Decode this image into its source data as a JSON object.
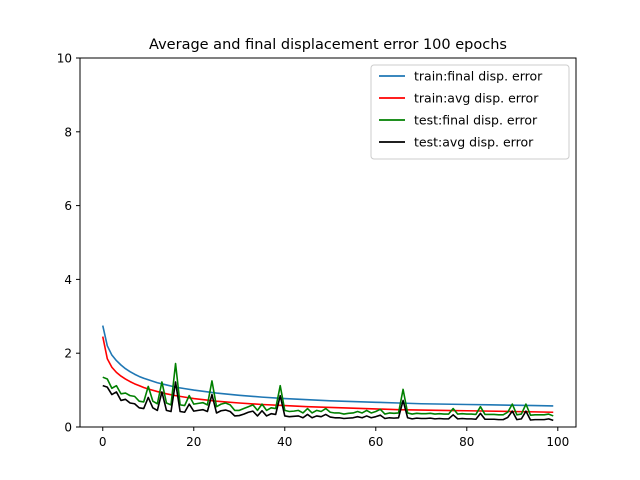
{
  "chart_data": {
    "type": "line",
    "title": "Average and final displacement error 100 epochs",
    "xlabel": "",
    "ylabel": "",
    "xlim": [
      -5,
      104
    ],
    "ylim": [
      0,
      10
    ],
    "xticks": [
      0,
      20,
      40,
      60,
      80,
      100
    ],
    "yticks": [
      0,
      2,
      4,
      6,
      8,
      10
    ],
    "grid": false,
    "legend_position": "top-right",
    "series": [
      {
        "name": "train:final disp. error",
        "color": "#1f77b4",
        "x": [
          0,
          1,
          2,
          3,
          4,
          5,
          6,
          7,
          8,
          9,
          10,
          12,
          14,
          16,
          18,
          20,
          25,
          30,
          35,
          40,
          45,
          50,
          55,
          60,
          65,
          70,
          75,
          80,
          85,
          90,
          95,
          99
        ],
        "values": [
          2.75,
          2.2,
          1.95,
          1.8,
          1.68,
          1.58,
          1.5,
          1.43,
          1.37,
          1.32,
          1.28,
          1.2,
          1.14,
          1.08,
          1.04,
          1.0,
          0.92,
          0.86,
          0.81,
          0.77,
          0.74,
          0.71,
          0.69,
          0.67,
          0.65,
          0.63,
          0.62,
          0.61,
          0.6,
          0.59,
          0.58,
          0.57
        ]
      },
      {
        "name": "train:avg disp. error",
        "color": "#ff0000",
        "x": [
          0,
          1,
          2,
          3,
          4,
          5,
          6,
          7,
          8,
          9,
          10,
          12,
          14,
          16,
          18,
          20,
          25,
          30,
          35,
          40,
          45,
          50,
          55,
          60,
          65,
          70,
          75,
          80,
          85,
          90,
          95,
          99
        ],
        "values": [
          2.45,
          1.85,
          1.62,
          1.48,
          1.38,
          1.3,
          1.23,
          1.17,
          1.12,
          1.07,
          1.03,
          0.96,
          0.9,
          0.85,
          0.81,
          0.77,
          0.7,
          0.65,
          0.61,
          0.58,
          0.55,
          0.53,
          0.51,
          0.49,
          0.47,
          0.46,
          0.45,
          0.44,
          0.43,
          0.42,
          0.41,
          0.4
        ]
      },
      {
        "name": "test:final disp. error",
        "color": "#008000",
        "x": [
          0,
          1,
          2,
          3,
          4,
          5,
          6,
          7,
          8,
          9,
          10,
          11,
          12,
          13,
          14,
          15,
          16,
          17,
          18,
          19,
          20,
          21,
          22,
          23,
          24,
          25,
          26,
          27,
          28,
          29,
          30,
          31,
          32,
          33,
          34,
          35,
          36,
          37,
          38,
          39,
          40,
          41,
          42,
          43,
          44,
          45,
          46,
          47,
          48,
          49,
          50,
          51,
          52,
          53,
          54,
          55,
          56,
          57,
          58,
          59,
          60,
          61,
          62,
          63,
          64,
          65,
          66,
          67,
          68,
          69,
          70,
          71,
          72,
          73,
          74,
          75,
          76,
          77,
          78,
          79,
          80,
          81,
          82,
          83,
          84,
          85,
          86,
          87,
          88,
          89,
          90,
          91,
          92,
          93,
          94,
          95,
          96,
          97,
          98,
          99
        ],
        "values": [
          1.35,
          1.3,
          1.05,
          1.12,
          0.9,
          0.92,
          0.85,
          0.83,
          0.7,
          0.68,
          1.1,
          0.7,
          0.63,
          1.22,
          0.65,
          0.6,
          1.72,
          0.6,
          0.58,
          0.85,
          0.62,
          0.64,
          0.66,
          0.6,
          1.25,
          0.55,
          0.62,
          0.65,
          0.6,
          0.45,
          0.45,
          0.5,
          0.55,
          0.6,
          0.45,
          0.62,
          0.45,
          0.52,
          0.5,
          1.12,
          0.45,
          0.42,
          0.43,
          0.45,
          0.38,
          0.5,
          0.38,
          0.45,
          0.42,
          0.5,
          0.4,
          0.38,
          0.38,
          0.35,
          0.37,
          0.38,
          0.42,
          0.38,
          0.45,
          0.38,
          0.42,
          0.48,
          0.35,
          0.38,
          0.37,
          0.38,
          1.02,
          0.38,
          0.35,
          0.37,
          0.36,
          0.36,
          0.37,
          0.35,
          0.36,
          0.35,
          0.35,
          0.5,
          0.35,
          0.36,
          0.35,
          0.35,
          0.34,
          0.55,
          0.34,
          0.34,
          0.34,
          0.33,
          0.33,
          0.4,
          0.62,
          0.33,
          0.35,
          0.62,
          0.32,
          0.33,
          0.33,
          0.33,
          0.35,
          0.3
        ]
      },
      {
        "name": "test:avg disp. error",
        "color": "#000000",
        "x": [
          0,
          1,
          2,
          3,
          4,
          5,
          6,
          7,
          8,
          9,
          10,
          11,
          12,
          13,
          14,
          15,
          16,
          17,
          18,
          19,
          20,
          21,
          22,
          23,
          24,
          25,
          26,
          27,
          28,
          29,
          30,
          31,
          32,
          33,
          34,
          35,
          36,
          37,
          38,
          39,
          40,
          41,
          42,
          43,
          44,
          45,
          46,
          47,
          48,
          49,
          50,
          51,
          52,
          53,
          54,
          55,
          56,
          57,
          58,
          59,
          60,
          61,
          62,
          63,
          64,
          65,
          66,
          67,
          68,
          69,
          70,
          71,
          72,
          73,
          74,
          75,
          76,
          77,
          78,
          79,
          80,
          81,
          82,
          83,
          84,
          85,
          86,
          87,
          88,
          89,
          90,
          91,
          92,
          93,
          94,
          95,
          96,
          97,
          98,
          99
        ],
        "values": [
          1.12,
          1.08,
          0.88,
          0.95,
          0.72,
          0.75,
          0.65,
          0.63,
          0.52,
          0.5,
          0.8,
          0.52,
          0.45,
          0.95,
          0.45,
          0.42,
          1.22,
          0.42,
          0.4,
          0.62,
          0.43,
          0.45,
          0.47,
          0.42,
          0.88,
          0.38,
          0.44,
          0.46,
          0.42,
          0.3,
          0.31,
          0.35,
          0.4,
          0.43,
          0.3,
          0.44,
          0.3,
          0.36,
          0.34,
          0.85,
          0.3,
          0.28,
          0.29,
          0.3,
          0.25,
          0.34,
          0.25,
          0.3,
          0.28,
          0.34,
          0.27,
          0.25,
          0.25,
          0.23,
          0.24,
          0.25,
          0.28,
          0.25,
          0.3,
          0.25,
          0.28,
          0.32,
          0.23,
          0.25,
          0.24,
          0.25,
          0.72,
          0.25,
          0.22,
          0.24,
          0.23,
          0.23,
          0.24,
          0.22,
          0.23,
          0.22,
          0.22,
          0.33,
          0.22,
          0.23,
          0.22,
          0.22,
          0.21,
          0.37,
          0.21,
          0.21,
          0.21,
          0.2,
          0.2,
          0.26,
          0.43,
          0.2,
          0.22,
          0.43,
          0.19,
          0.2,
          0.2,
          0.2,
          0.22,
          0.18
        ]
      }
    ]
  }
}
